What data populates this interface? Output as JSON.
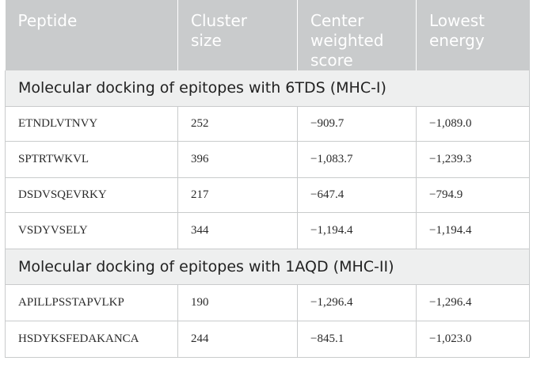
{
  "headers": {
    "peptide": "Peptide",
    "cluster_size_line1": "Cluster",
    "cluster_size_line2": "size",
    "center_line1": "Center",
    "center_line2": "weighted",
    "center_line3": "score",
    "lowest_line1": "Lowest",
    "lowest_line2": "energy"
  },
  "sections": [
    {
      "title": "Molecular docking of epitopes with 6TDS (MHC-I)",
      "rows": [
        {
          "peptide": "ETNDLVTNVY",
          "cluster_size": "252",
          "center_weighted_score": "−909.7",
          "lowest_energy": "−1,089.0"
        },
        {
          "peptide": "SPTRTWKVL",
          "cluster_size": "396",
          "center_weighted_score": "−1,083.7",
          "lowest_energy": "−1,239.3"
        },
        {
          "peptide": "DSDVSQEVRKY",
          "cluster_size": "217",
          "center_weighted_score": "−647.4",
          "lowest_energy": "−794.9"
        },
        {
          "peptide": "VSDYVSELY",
          "cluster_size": "344",
          "center_weighted_score": "−1,194.4",
          "lowest_energy": "−1,194.4"
        }
      ]
    },
    {
      "title": "Molecular docking of epitopes with 1AQD (MHC-II)",
      "rows": [
        {
          "peptide": "APILLPSSTAPVLKP",
          "cluster_size": "190",
          "center_weighted_score": "−1,296.4",
          "lowest_energy": "−1,296.4"
        },
        {
          "peptide": "HSDYKSFEDAKANCA",
          "cluster_size": "244",
          "center_weighted_score": "−845.1",
          "lowest_energy": "−1,023.0"
        }
      ]
    }
  ]
}
